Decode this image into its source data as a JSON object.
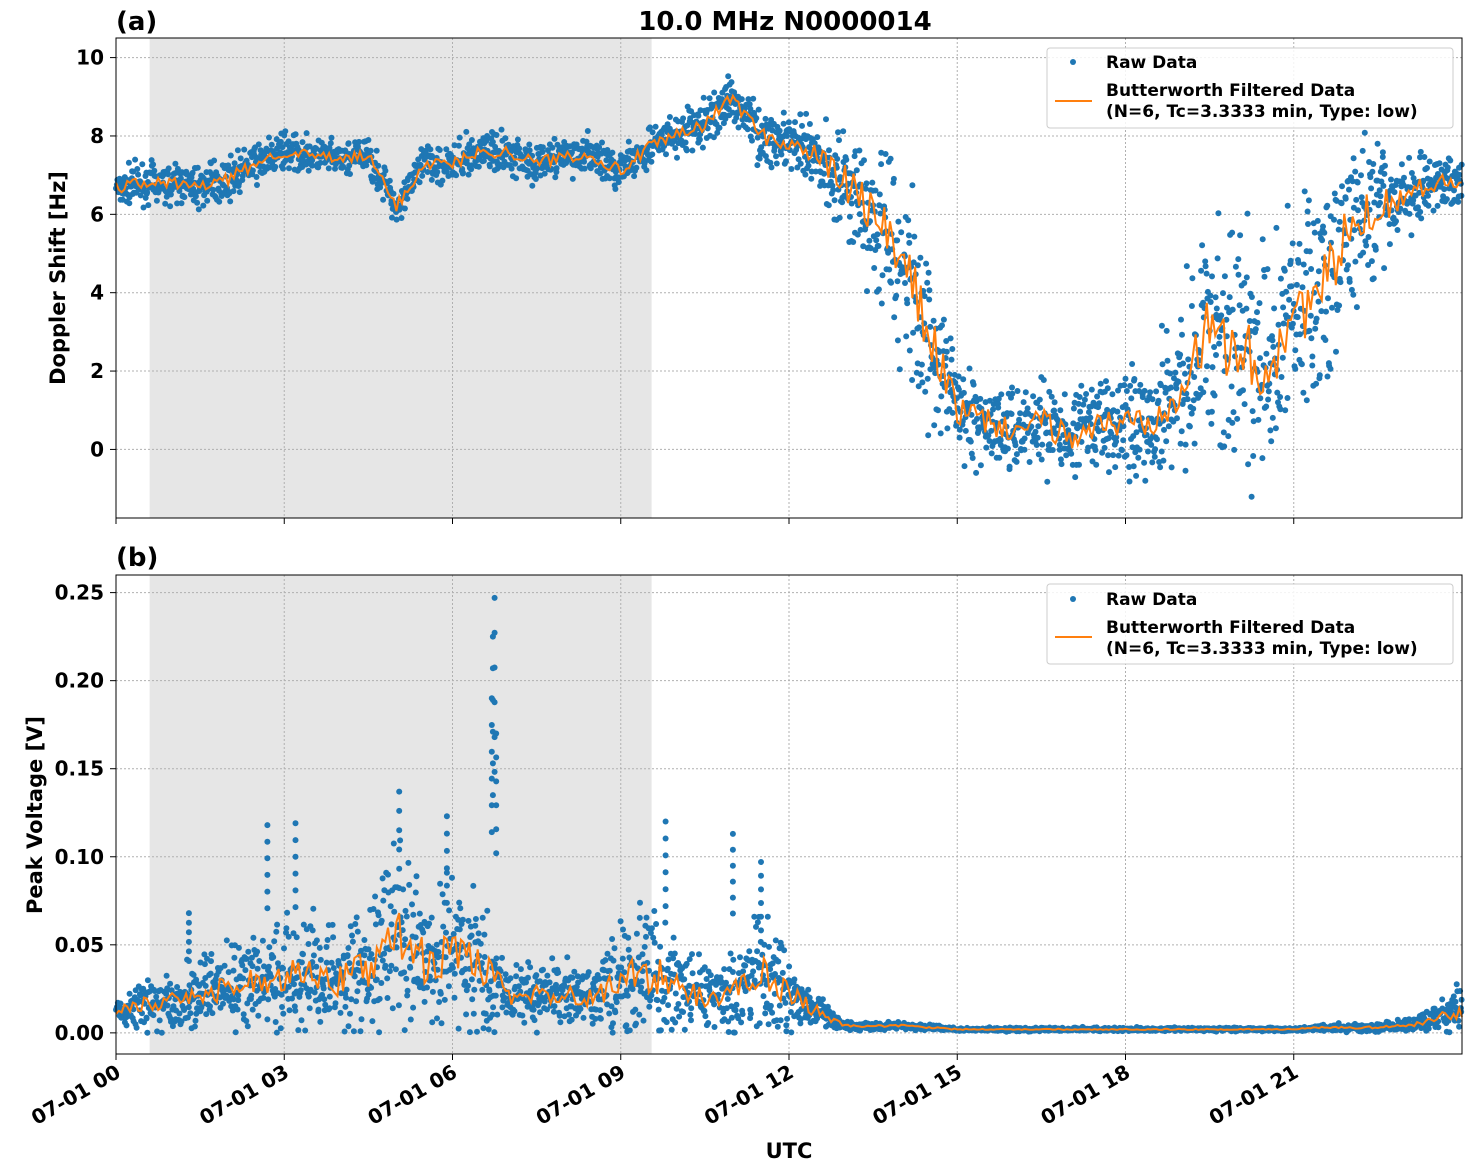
{
  "title": "10.0 MHz N0000014",
  "colors": {
    "raw": "#1f77b4",
    "filtered": "#ff7f0e",
    "shade": "#e6e6e6",
    "grid": "#b0b0b0"
  },
  "legend": {
    "raw_label": "Raw Data",
    "filtered_label_line1": "Butterworth Filtered Data",
    "filtered_label_line2": "(N=6, Tc=3.3333 min, Type: low)",
    "placement": "top-right"
  },
  "xlabel": "UTC",
  "x_ticks": [
    "07-01 00",
    "07-01 03",
    "07-01 06",
    "07-01 09",
    "07-01 12",
    "07-01 15",
    "07-01 18",
    "07-01 21"
  ],
  "chart_data": [
    {
      "type": "scatter",
      "panel_label": "(a)",
      "ylabel": "Doppler Shift [Hz]",
      "xlim_hours": [
        0,
        24
      ],
      "ylim": [
        -1.75,
        10.5
      ],
      "y_ticks": [
        0,
        2,
        4,
        6,
        8,
        10
      ],
      "y_tick_labels": [
        "0",
        "2",
        "4",
        "6",
        "8",
        "10"
      ],
      "grid": true,
      "shaded_interval_hours": [
        0.6,
        9.55
      ],
      "x_hours": [
        0,
        0.5,
        1,
        1.5,
        2,
        2.5,
        3,
        3.5,
        4,
        4.5,
        5,
        5.5,
        6,
        6.5,
        7,
        7.5,
        8,
        8.5,
        9,
        9.5,
        10,
        10.5,
        11,
        11.5,
        12,
        12.5,
        13,
        13.5,
        14,
        14.5,
        15,
        15.5,
        16,
        16.5,
        17,
        17.5,
        18,
        18.5,
        19,
        19.5,
        20,
        20.5,
        21,
        21.5,
        22,
        22.5,
        23,
        23.5,
        24
      ],
      "series": [
        {
          "name": "Butterworth Filtered Data",
          "values": [
            6.7,
            6.8,
            6.8,
            6.7,
            6.9,
            7.3,
            7.6,
            7.5,
            7.4,
            7.5,
            6.2,
            7.3,
            7.3,
            7.6,
            7.6,
            7.3,
            7.5,
            7.5,
            7.1,
            7.7,
            8.0,
            8.3,
            9.0,
            8.0,
            7.8,
            7.5,
            6.8,
            6.0,
            4.8,
            3.0,
            1.0,
            0.7,
            0.5,
            0.7,
            0.3,
            0.6,
            0.7,
            0.8,
            1.8,
            3.0,
            2.5,
            2.0,
            3.5,
            4.0,
            5.6,
            6.2,
            6.5,
            6.8,
            6.9
          ],
          "spread": [
            0.45,
            0.45,
            0.45,
            0.45,
            0.45,
            0.45,
            0.4,
            0.4,
            0.4,
            0.4,
            0.45,
            0.45,
            0.45,
            0.45,
            0.45,
            0.45,
            0.45,
            0.45,
            0.45,
            0.45,
            0.5,
            0.5,
            0.55,
            0.6,
            0.6,
            0.8,
            1.3,
            1.9,
            2.4,
            2.0,
            1.2,
            1.0,
            1.0,
            1.0,
            1.0,
            1.1,
            1.2,
            1.4,
            2.0,
            2.6,
            2.6,
            2.6,
            2.6,
            2.5,
            2.0,
            1.4,
            0.9,
            0.6,
            0.6
          ]
        }
      ]
    },
    {
      "type": "scatter",
      "panel_label": "(b)",
      "ylabel": "Peak Voltage [V]",
      "xlim_hours": [
        0,
        24
      ],
      "ylim": [
        -0.012,
        0.26
      ],
      "y_ticks": [
        0.0,
        0.05,
        0.1,
        0.15,
        0.2,
        0.25
      ],
      "y_tick_labels": [
        "0.00",
        "0.05",
        "0.10",
        "0.15",
        "0.20",
        "0.25"
      ],
      "grid": true,
      "shaded_interval_hours": [
        0.6,
        9.55
      ],
      "x_hours": [
        0,
        0.5,
        1,
        1.5,
        2,
        2.5,
        3,
        3.5,
        4,
        4.5,
        5,
        5.5,
        6,
        6.5,
        7,
        7.5,
        8,
        8.5,
        9,
        9.5,
        10,
        10.5,
        11,
        11.5,
        12,
        12.5,
        13,
        13.5,
        14,
        14.5,
        15,
        15.5,
        16,
        16.5,
        17,
        17.5,
        18,
        18.5,
        19,
        19.5,
        20,
        20.5,
        21,
        21.5,
        22,
        22.5,
        23,
        23.5,
        24
      ],
      "series": [
        {
          "name": "Butterworth Filtered Data",
          "values": [
            0.012,
            0.016,
            0.018,
            0.022,
            0.025,
            0.03,
            0.034,
            0.035,
            0.03,
            0.035,
            0.06,
            0.04,
            0.045,
            0.04,
            0.02,
            0.022,
            0.022,
            0.02,
            0.03,
            0.035,
            0.025,
            0.02,
            0.022,
            0.035,
            0.022,
            0.012,
            0.004,
            0.004,
            0.004,
            0.003,
            0.002,
            0.002,
            0.002,
            0.002,
            0.002,
            0.002,
            0.002,
            0.002,
            0.002,
            0.002,
            0.002,
            0.002,
            0.002,
            0.003,
            0.003,
            0.003,
            0.004,
            0.008,
            0.012
          ],
          "spread": [
            0.008,
            0.012,
            0.014,
            0.018,
            0.02,
            0.025,
            0.03,
            0.03,
            0.028,
            0.035,
            0.045,
            0.035,
            0.04,
            0.035,
            0.015,
            0.018,
            0.015,
            0.015,
            0.03,
            0.035,
            0.025,
            0.015,
            0.02,
            0.03,
            0.02,
            0.01,
            0.002,
            0.002,
            0.002,
            0.0015,
            0.001,
            0.001,
            0.001,
            0.001,
            0.001,
            0.001,
            0.001,
            0.001,
            0.001,
            0.001,
            0.001,
            0.001,
            0.001,
            0.0015,
            0.002,
            0.002,
            0.003,
            0.008,
            0.012
          ]
        }
      ],
      "spikes": [
        {
          "x_hour": 6.75,
          "value": 0.247
        },
        {
          "x_hour": 6.72,
          "value": 0.225
        },
        {
          "x_hour": 6.7,
          "value": 0.19
        },
        {
          "x_hour": 6.78,
          "value": 0.17
        },
        {
          "x_hour": 5.05,
          "value": 0.137
        },
        {
          "x_hour": 3.2,
          "value": 0.119
        },
        {
          "x_hour": 2.7,
          "value": 0.118
        },
        {
          "x_hour": 9.8,
          "value": 0.12
        },
        {
          "x_hour": 11.0,
          "value": 0.113
        },
        {
          "x_hour": 5.9,
          "value": 0.123
        },
        {
          "x_hour": 11.5,
          "value": 0.097
        },
        {
          "x_hour": 1.3,
          "value": 0.068
        }
      ]
    }
  ]
}
